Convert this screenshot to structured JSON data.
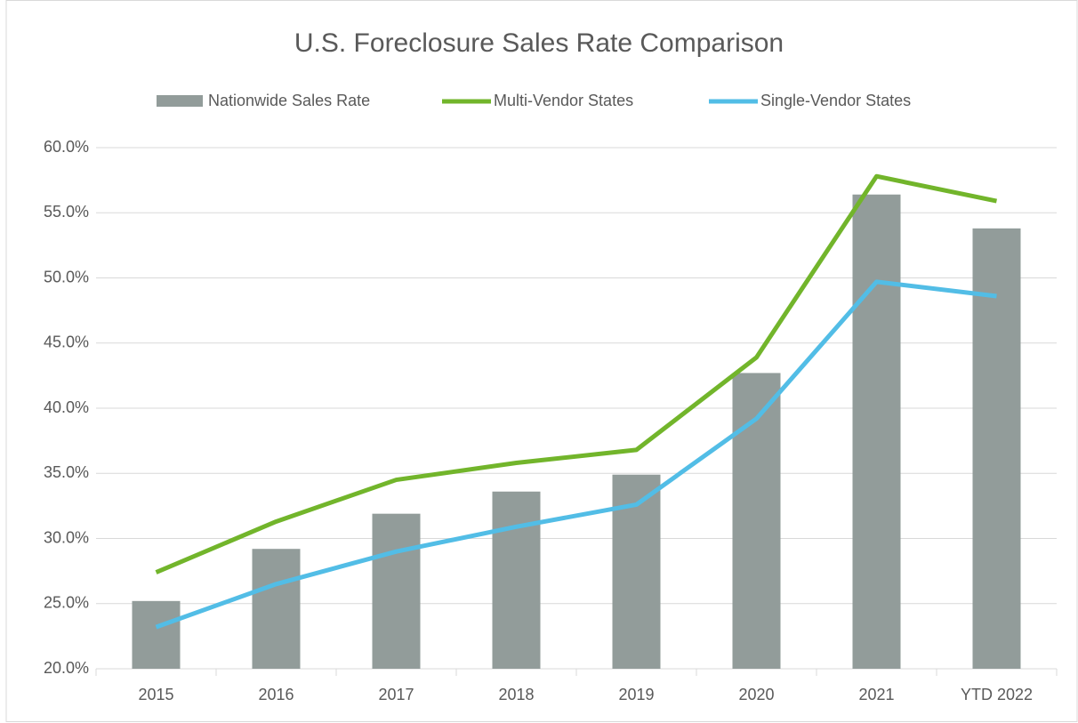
{
  "chart_data": {
    "type": "bar_line",
    "title": "U.S. Foreclosure Sales Rate Comparison",
    "categories": [
      "2015",
      "2016",
      "2017",
      "2018",
      "2019",
      "2020",
      "2021",
      "YTD 2022"
    ],
    "series": [
      {
        "name": "Nationwide Sales Rate",
        "type": "bar",
        "color": "#929c9a",
        "values": [
          25.2,
          29.2,
          31.9,
          33.6,
          34.9,
          42.7,
          56.4,
          53.8
        ]
      },
      {
        "name": "Multi-Vendor States",
        "type": "line",
        "color": "#72b52b",
        "values": [
          27.4,
          31.3,
          34.5,
          35.8,
          36.8,
          43.9,
          57.8,
          55.9
        ]
      },
      {
        "name": "Single-Vendor States",
        "type": "line",
        "color": "#52bde6",
        "values": [
          23.2,
          26.5,
          29.0,
          30.9,
          32.6,
          39.2,
          49.7,
          48.6
        ]
      }
    ],
    "ylim": [
      20,
      60
    ],
    "yticks": [
      {
        "value": 20,
        "label": "20.0%"
      },
      {
        "value": 25,
        "label": "25.0%"
      },
      {
        "value": 30,
        "label": "30.0%"
      },
      {
        "value": 35,
        "label": "35.0%"
      },
      {
        "value": 40,
        "label": "40.0%"
      },
      {
        "value": 45,
        "label": "45.0%"
      },
      {
        "value": 50,
        "label": "50.0%"
      },
      {
        "value": 55,
        "label": "55.0%"
      },
      {
        "value": 60,
        "label": "60.0%"
      }
    ],
    "grid": true,
    "legend": "top"
  }
}
